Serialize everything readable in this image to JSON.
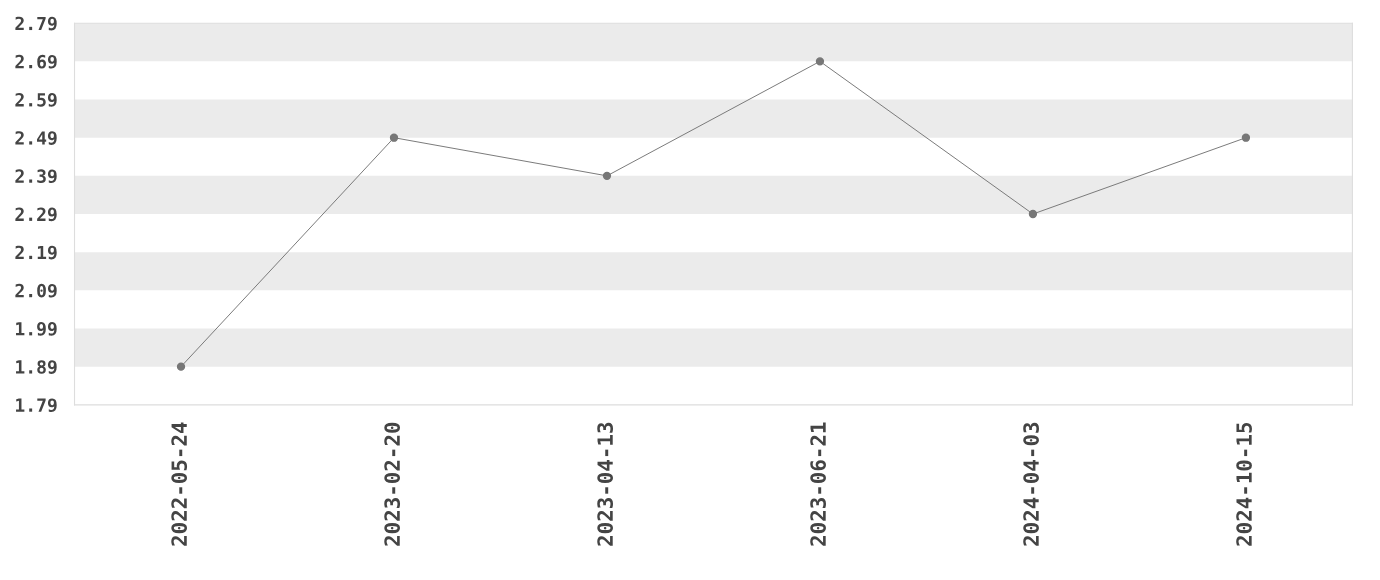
{
  "chart_data": {
    "type": "line",
    "categories": [
      "2022-05-24",
      "2023-02-20",
      "2023-04-13",
      "2023-06-21",
      "2024-04-03",
      "2024-10-15"
    ],
    "series": [
      {
        "color": "#777777",
        "values": [
          1.89,
          2.49,
          2.39,
          2.69,
          2.29,
          2.49
        ]
      }
    ],
    "ylim": [
      1.79,
      2.79
    ],
    "yticks": [
      1.79,
      1.89,
      1.99,
      2.09,
      2.19,
      2.29,
      2.39,
      2.49,
      2.59,
      2.69,
      2.79
    ],
    "bands": [
      {
        "axis": "y",
        "from": 2.69,
        "to": 2.79,
        "color": "#ebebeb"
      },
      {
        "axis": "y",
        "from": 2.49,
        "to": 2.59,
        "color": "#ebebeb"
      },
      {
        "axis": "y",
        "from": 2.29,
        "to": 2.39,
        "color": "#ebebeb"
      },
      {
        "axis": "y",
        "from": 2.09,
        "to": 2.19,
        "color": "#ebebeb"
      },
      {
        "axis": "y",
        "from": 1.89,
        "to": 1.99,
        "color": "#ebebeb"
      }
    ],
    "marker": "circle",
    "line_style": "solid",
    "grid": false,
    "legend": false
  }
}
